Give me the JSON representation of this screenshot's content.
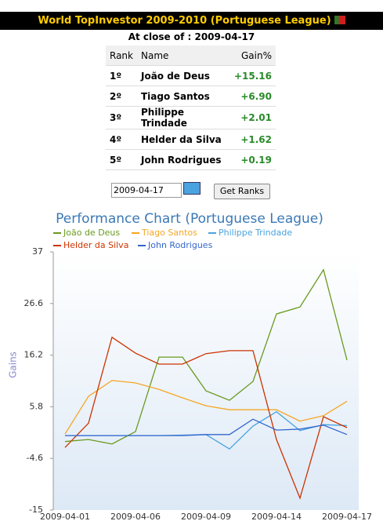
{
  "header": {
    "title": "World TopInvestor 2009-2010 (Portuguese League)",
    "close_label": "At close of : 2009-04-17"
  },
  "ranking": {
    "columns": [
      "Rank",
      "Name",
      "Gain%"
    ],
    "rows": [
      [
        "1º",
        "João de Deus",
        "+15.16"
      ],
      [
        "2º",
        "Tiago Santos",
        "+6.90"
      ],
      [
        "3º",
        "Philippe Trindade",
        "+2.01"
      ],
      [
        "4º",
        "Helder da Silva",
        "+1.62"
      ],
      [
        "5º",
        "John Rodrigues",
        "+0.19"
      ]
    ]
  },
  "controls": {
    "date": "2009-04-17",
    "button": "Get Ranks"
  },
  "chart_data": {
    "type": "line",
    "title": "Performance Chart (Portuguese League)",
    "ylabel": "Gains",
    "categories": [
      "2009-04-01",
      null,
      null,
      "2009-04-06",
      null,
      null,
      "2009-04-09",
      null,
      null,
      "2009-04-14",
      null,
      null,
      "2009-04-17"
    ],
    "series": [
      {
        "name": "João de Deus",
        "color": "#6a9a1f",
        "values": [
          -1.2,
          -0.8,
          -1.7,
          0.8,
          15.8,
          15.8,
          9.0,
          7.1,
          10.9,
          24.5,
          25.9,
          33.4,
          15.2
        ]
      },
      {
        "name": "Tiago Santos",
        "color": "#f5a623",
        "values": [
          0.3,
          7.9,
          11.1,
          10.6,
          9.3,
          7.6,
          6.0,
          5.2,
          5.2,
          5.2,
          2.9,
          4.0,
          6.9
        ]
      },
      {
        "name": "Philippe Trindade",
        "color": "#4aa3df",
        "values": [
          0,
          0,
          0,
          0,
          0,
          0.1,
          0.2,
          -2.7,
          1.9,
          4.8,
          1.0,
          2.2,
          2.0
        ]
      },
      {
        "name": "Helder da Silva",
        "color": "#cc3300",
        "values": [
          -2.4,
          2.5,
          19.8,
          16.6,
          14.4,
          14.4,
          16.5,
          17.1,
          17.1,
          -0.8,
          -12.6,
          3.8,
          1.6
        ]
      },
      {
        "name": "John Rodrigues",
        "color": "#3366cc",
        "values": [
          0,
          0,
          0,
          0,
          0,
          0,
          0.2,
          0.2,
          3.3,
          1.1,
          1.3,
          2.1,
          0.2
        ]
      }
    ],
    "ylim": [
      -15,
      37
    ],
    "yticks": [
      -15,
      -4.6,
      5.8,
      16.2,
      26.6,
      37
    ]
  }
}
